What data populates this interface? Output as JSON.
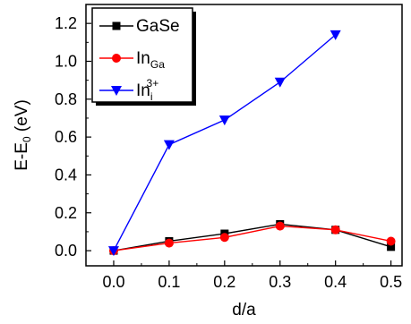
{
  "chart_data": {
    "type": "line",
    "xlabel": "d/a",
    "ylabel": {
      "main": "E-E",
      "sub": "0",
      "unit": " (eV)"
    },
    "x": [
      0.0,
      0.1,
      0.2,
      0.3,
      0.4,
      0.5
    ],
    "xticks": [
      "0.0",
      "0.1",
      "0.2",
      "0.3",
      "0.4",
      "0.5"
    ],
    "yticks": [
      "0.0",
      "0.2",
      "0.4",
      "0.6",
      "0.8",
      "1.0",
      "1.2"
    ],
    "xlim": [
      -0.05,
      0.52
    ],
    "ylim": [
      -0.08,
      1.3
    ],
    "legend_position": "top-left",
    "series": [
      {
        "name": "GaSe",
        "legend": {
          "base": "GaSe"
        },
        "color": "#000000",
        "marker": "square",
        "values": [
          0.0,
          0.05,
          0.09,
          0.14,
          0.11,
          0.02
        ]
      },
      {
        "name": "InGa",
        "legend": {
          "base": "In",
          "sub": "Ga"
        },
        "color": "#ff0000",
        "marker": "circle",
        "values": [
          0.0,
          0.04,
          0.07,
          0.13,
          0.11,
          0.05
        ]
      },
      {
        "name": "Ini3+",
        "legend": {
          "base": "In",
          "sub": "i",
          "sup": "3+"
        },
        "color": "#0000ff",
        "marker": "triangle-down",
        "values": [
          0.0,
          0.56,
          0.69,
          0.89,
          1.14,
          null
        ]
      }
    ]
  }
}
